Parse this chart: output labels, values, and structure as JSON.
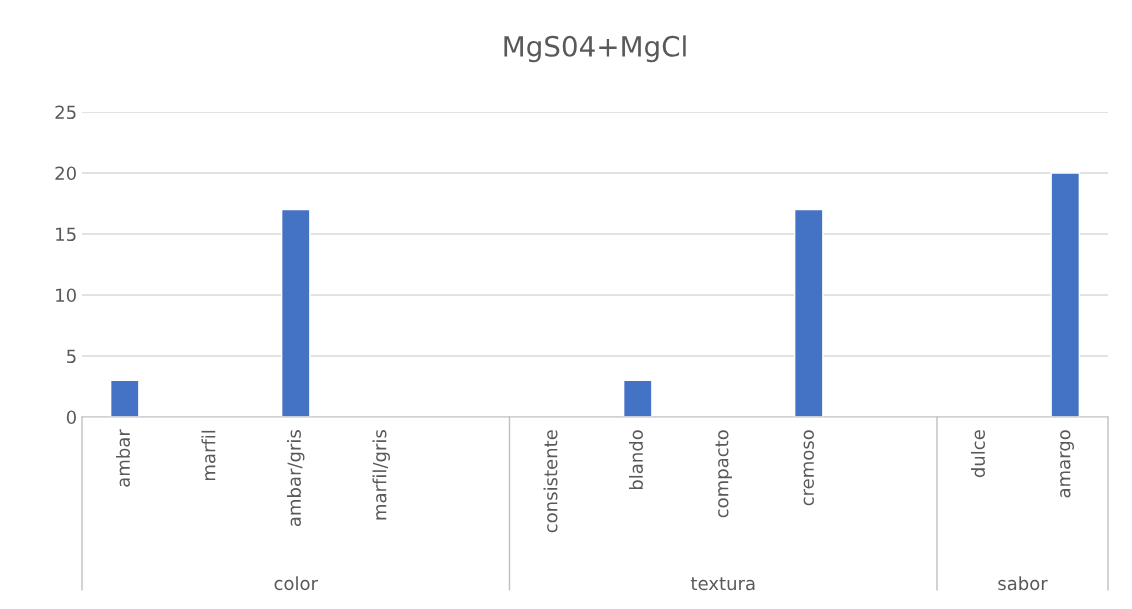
{
  "chart_data": {
    "type": "bar",
    "title": "MgS04+MgCl",
    "categories": [
      "ambar",
      "marfil",
      "ambar/gris",
      "marfil/gris",
      null,
      "consistente",
      "blando",
      "compacto",
      "cremoso",
      null,
      "dulce",
      "amargo"
    ],
    "values": [
      3,
      null,
      17,
      null,
      null,
      null,
      3,
      null,
      17,
      null,
      null,
      20
    ],
    "color": "#4472c4",
    "ylim": [
      0,
      25
    ],
    "yticks": [
      0,
      5,
      10,
      15,
      20,
      25
    ],
    "grid": "y",
    "annotations": [
      "color",
      "textura",
      "sabor"
    ]
  }
}
